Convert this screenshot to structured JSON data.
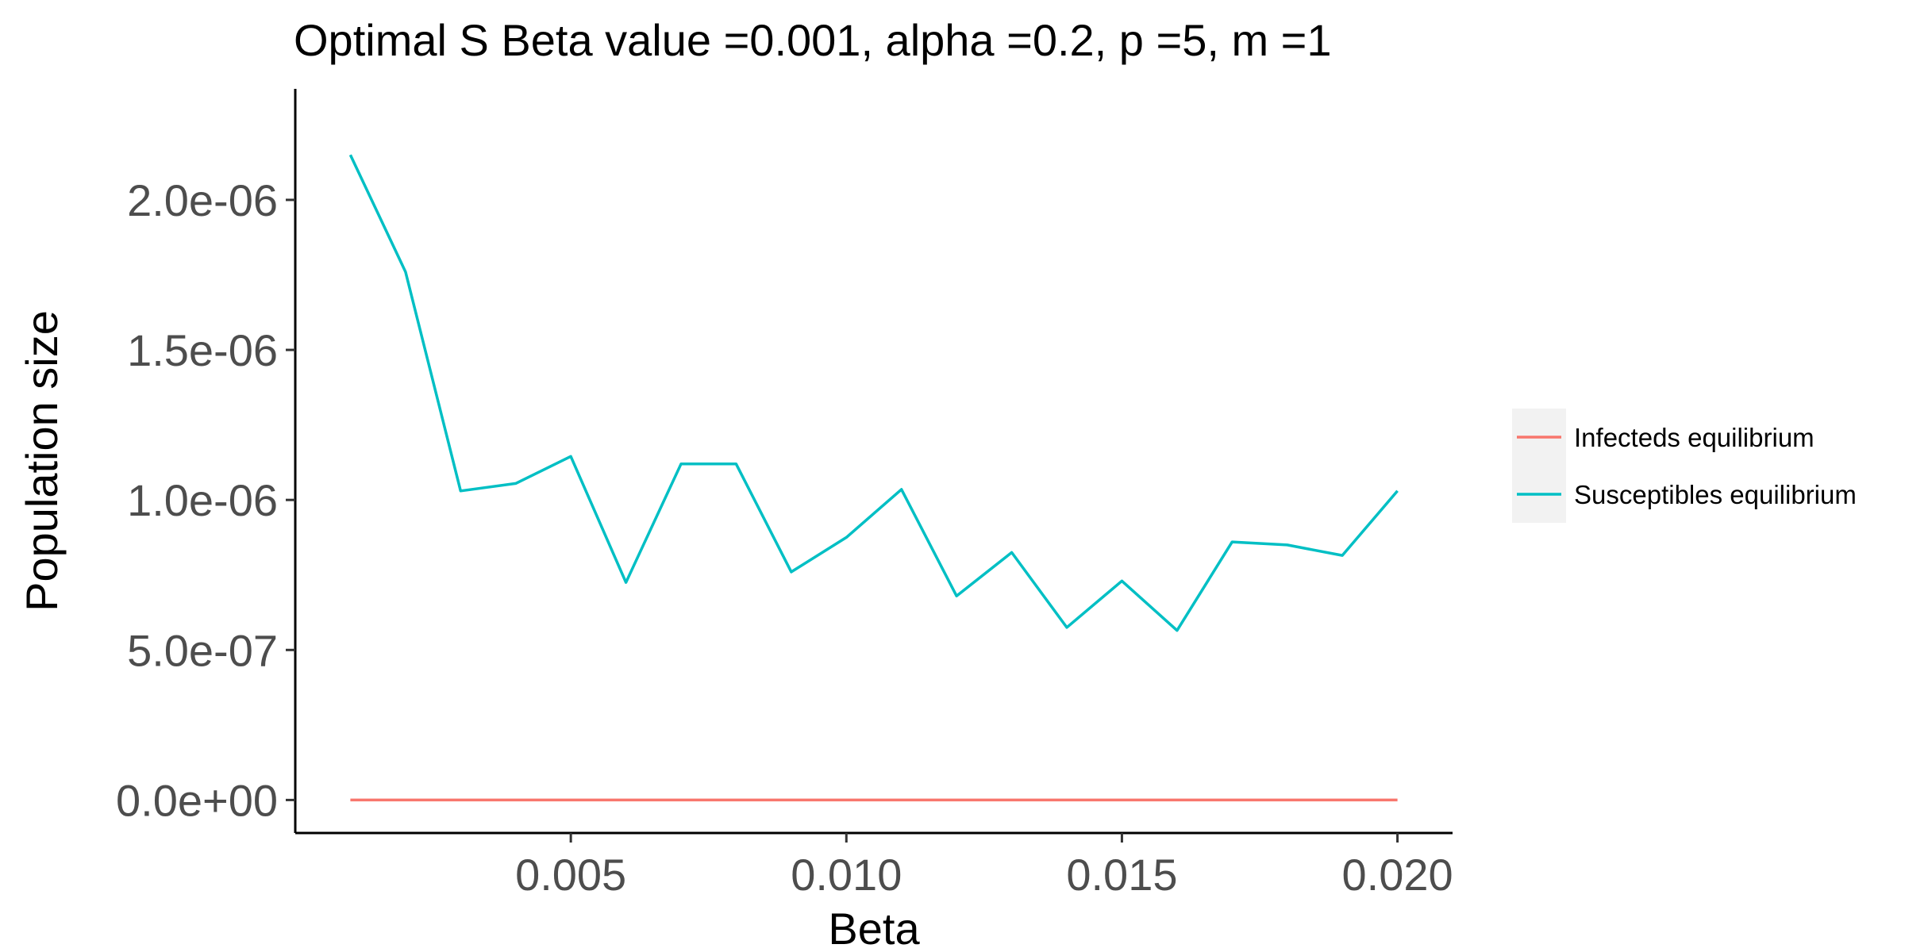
{
  "chart_data": {
    "type": "line",
    "title": "Optimal S Beta value =0.001, alpha =0.2, p =5, m =1",
    "xlabel": "Beta",
    "ylabel": "Population size",
    "xlim": [
      0.0,
      0.021
    ],
    "ylim": [
      -1.1e-07,
      2.37e-06
    ],
    "x_ticks": [
      0.005,
      0.01,
      0.015,
      0.02
    ],
    "x_tick_labels": [
      "0.005",
      "0.010",
      "0.015",
      "0.020"
    ],
    "y_ticks": [
      0,
      5e-07,
      1e-06,
      1.5e-06,
      2e-06
    ],
    "y_tick_labels": [
      "0.0e+00",
      "5.0e-07",
      "1.0e-06",
      "1.5e-06",
      "2.0e-06"
    ],
    "grid": false,
    "legend_position": "right",
    "x": [
      0.001,
      0.002,
      0.003,
      0.004,
      0.005,
      0.006,
      0.007,
      0.008,
      0.009,
      0.01,
      0.011,
      0.012,
      0.013,
      0.014,
      0.015,
      0.016,
      0.017,
      0.018,
      0.019,
      0.02
    ],
    "series": [
      {
        "name": "Infecteds equilibrium",
        "color": "#F8766D",
        "values": [
          0,
          0,
          0,
          0,
          0,
          0,
          0,
          0,
          0,
          0,
          0,
          0,
          0,
          0,
          0,
          0,
          0,
          0,
          0,
          0
        ]
      },
      {
        "name": "Susceptibles equilibrium",
        "color": "#00BFC4",
        "values": [
          2.15e-06,
          1.76e-06,
          1.03e-06,
          1.055e-06,
          1.145e-06,
          7.25e-07,
          1.12e-06,
          1.12e-06,
          7.6e-07,
          8.75e-07,
          1.035e-06,
          6.8e-07,
          8.25e-07,
          5.75e-07,
          7.3e-07,
          5.65e-07,
          8.6e-07,
          8.5e-07,
          8.15e-07,
          1.03e-06
        ]
      }
    ]
  }
}
